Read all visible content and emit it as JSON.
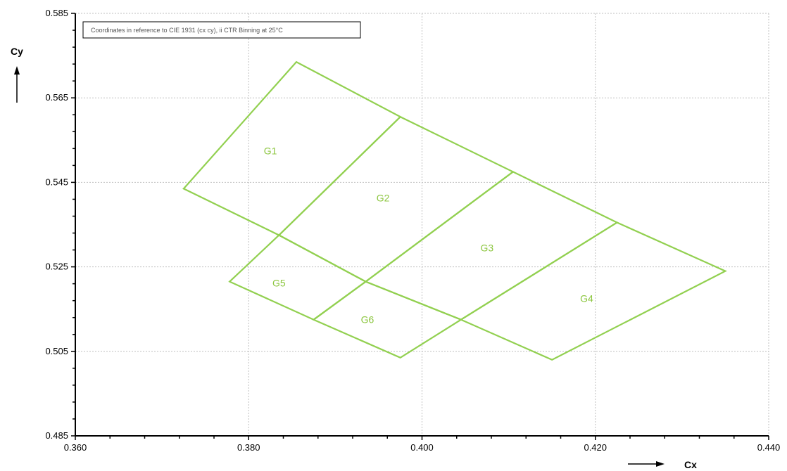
{
  "chart_data": {
    "type": "scatter",
    "title": "",
    "annotation": "Coordinates in reference to CIE 1931 (cx cy), ii CTR Binning at 25°C",
    "xlabel": "Cx",
    "ylabel": "Cy",
    "xlim": [
      0.36,
      0.44
    ],
    "ylim": [
      0.485,
      0.585
    ],
    "x_ticks": [
      "0.360",
      "0.380",
      "0.400",
      "0.420",
      "0.440"
    ],
    "y_ticks": [
      "0.485",
      "0.505",
      "0.525",
      "0.545",
      "0.565",
      "0.585"
    ],
    "x_tick_values": [
      0.36,
      0.38,
      0.4,
      0.42,
      0.44
    ],
    "y_tick_values": [
      0.485,
      0.505,
      0.525,
      0.545,
      0.565,
      0.585
    ],
    "grid": true,
    "line_color": "#92d050",
    "label_color": "#8cc63f",
    "regions": [
      {
        "name": "G1",
        "points": [
          [
            0.3725,
            0.5435
          ],
          [
            0.3855,
            0.5735
          ],
          [
            0.3975,
            0.5605
          ],
          [
            0.3835,
            0.5325
          ]
        ],
        "label_position": [
          0.3825,
          0.5525
        ]
      },
      {
        "name": "G2",
        "points": [
          [
            0.3835,
            0.5325
          ],
          [
            0.3975,
            0.5605
          ],
          [
            0.4105,
            0.5475
          ],
          [
            0.3935,
            0.5215
          ]
        ],
        "label_position": [
          0.3955,
          0.5413
        ]
      },
      {
        "name": "G3",
        "points": [
          [
            0.3935,
            0.5215
          ],
          [
            0.4105,
            0.5475
          ],
          [
            0.4225,
            0.5355
          ],
          [
            0.4045,
            0.5125
          ]
        ],
        "label_position": [
          0.4075,
          0.5295
        ]
      },
      {
        "name": "G4",
        "points": [
          [
            0.4045,
            0.5125
          ],
          [
            0.4225,
            0.5355
          ],
          [
            0.435,
            0.524
          ],
          [
            0.415,
            0.503
          ]
        ],
        "label_position": [
          0.419,
          0.5175
        ]
      },
      {
        "name": "G5",
        "points": [
          [
            0.3778,
            0.5215
          ],
          [
            0.3835,
            0.5325
          ],
          [
            0.3935,
            0.5215
          ],
          [
            0.3875,
            0.5125
          ]
        ],
        "label_position": [
          0.3835,
          0.5212
        ]
      },
      {
        "name": "G6",
        "points": [
          [
            0.3875,
            0.5125
          ],
          [
            0.3935,
            0.5215
          ],
          [
            0.4045,
            0.5125
          ],
          [
            0.3975,
            0.5035
          ]
        ],
        "label_position": [
          0.3937,
          0.5125
        ]
      }
    ]
  }
}
